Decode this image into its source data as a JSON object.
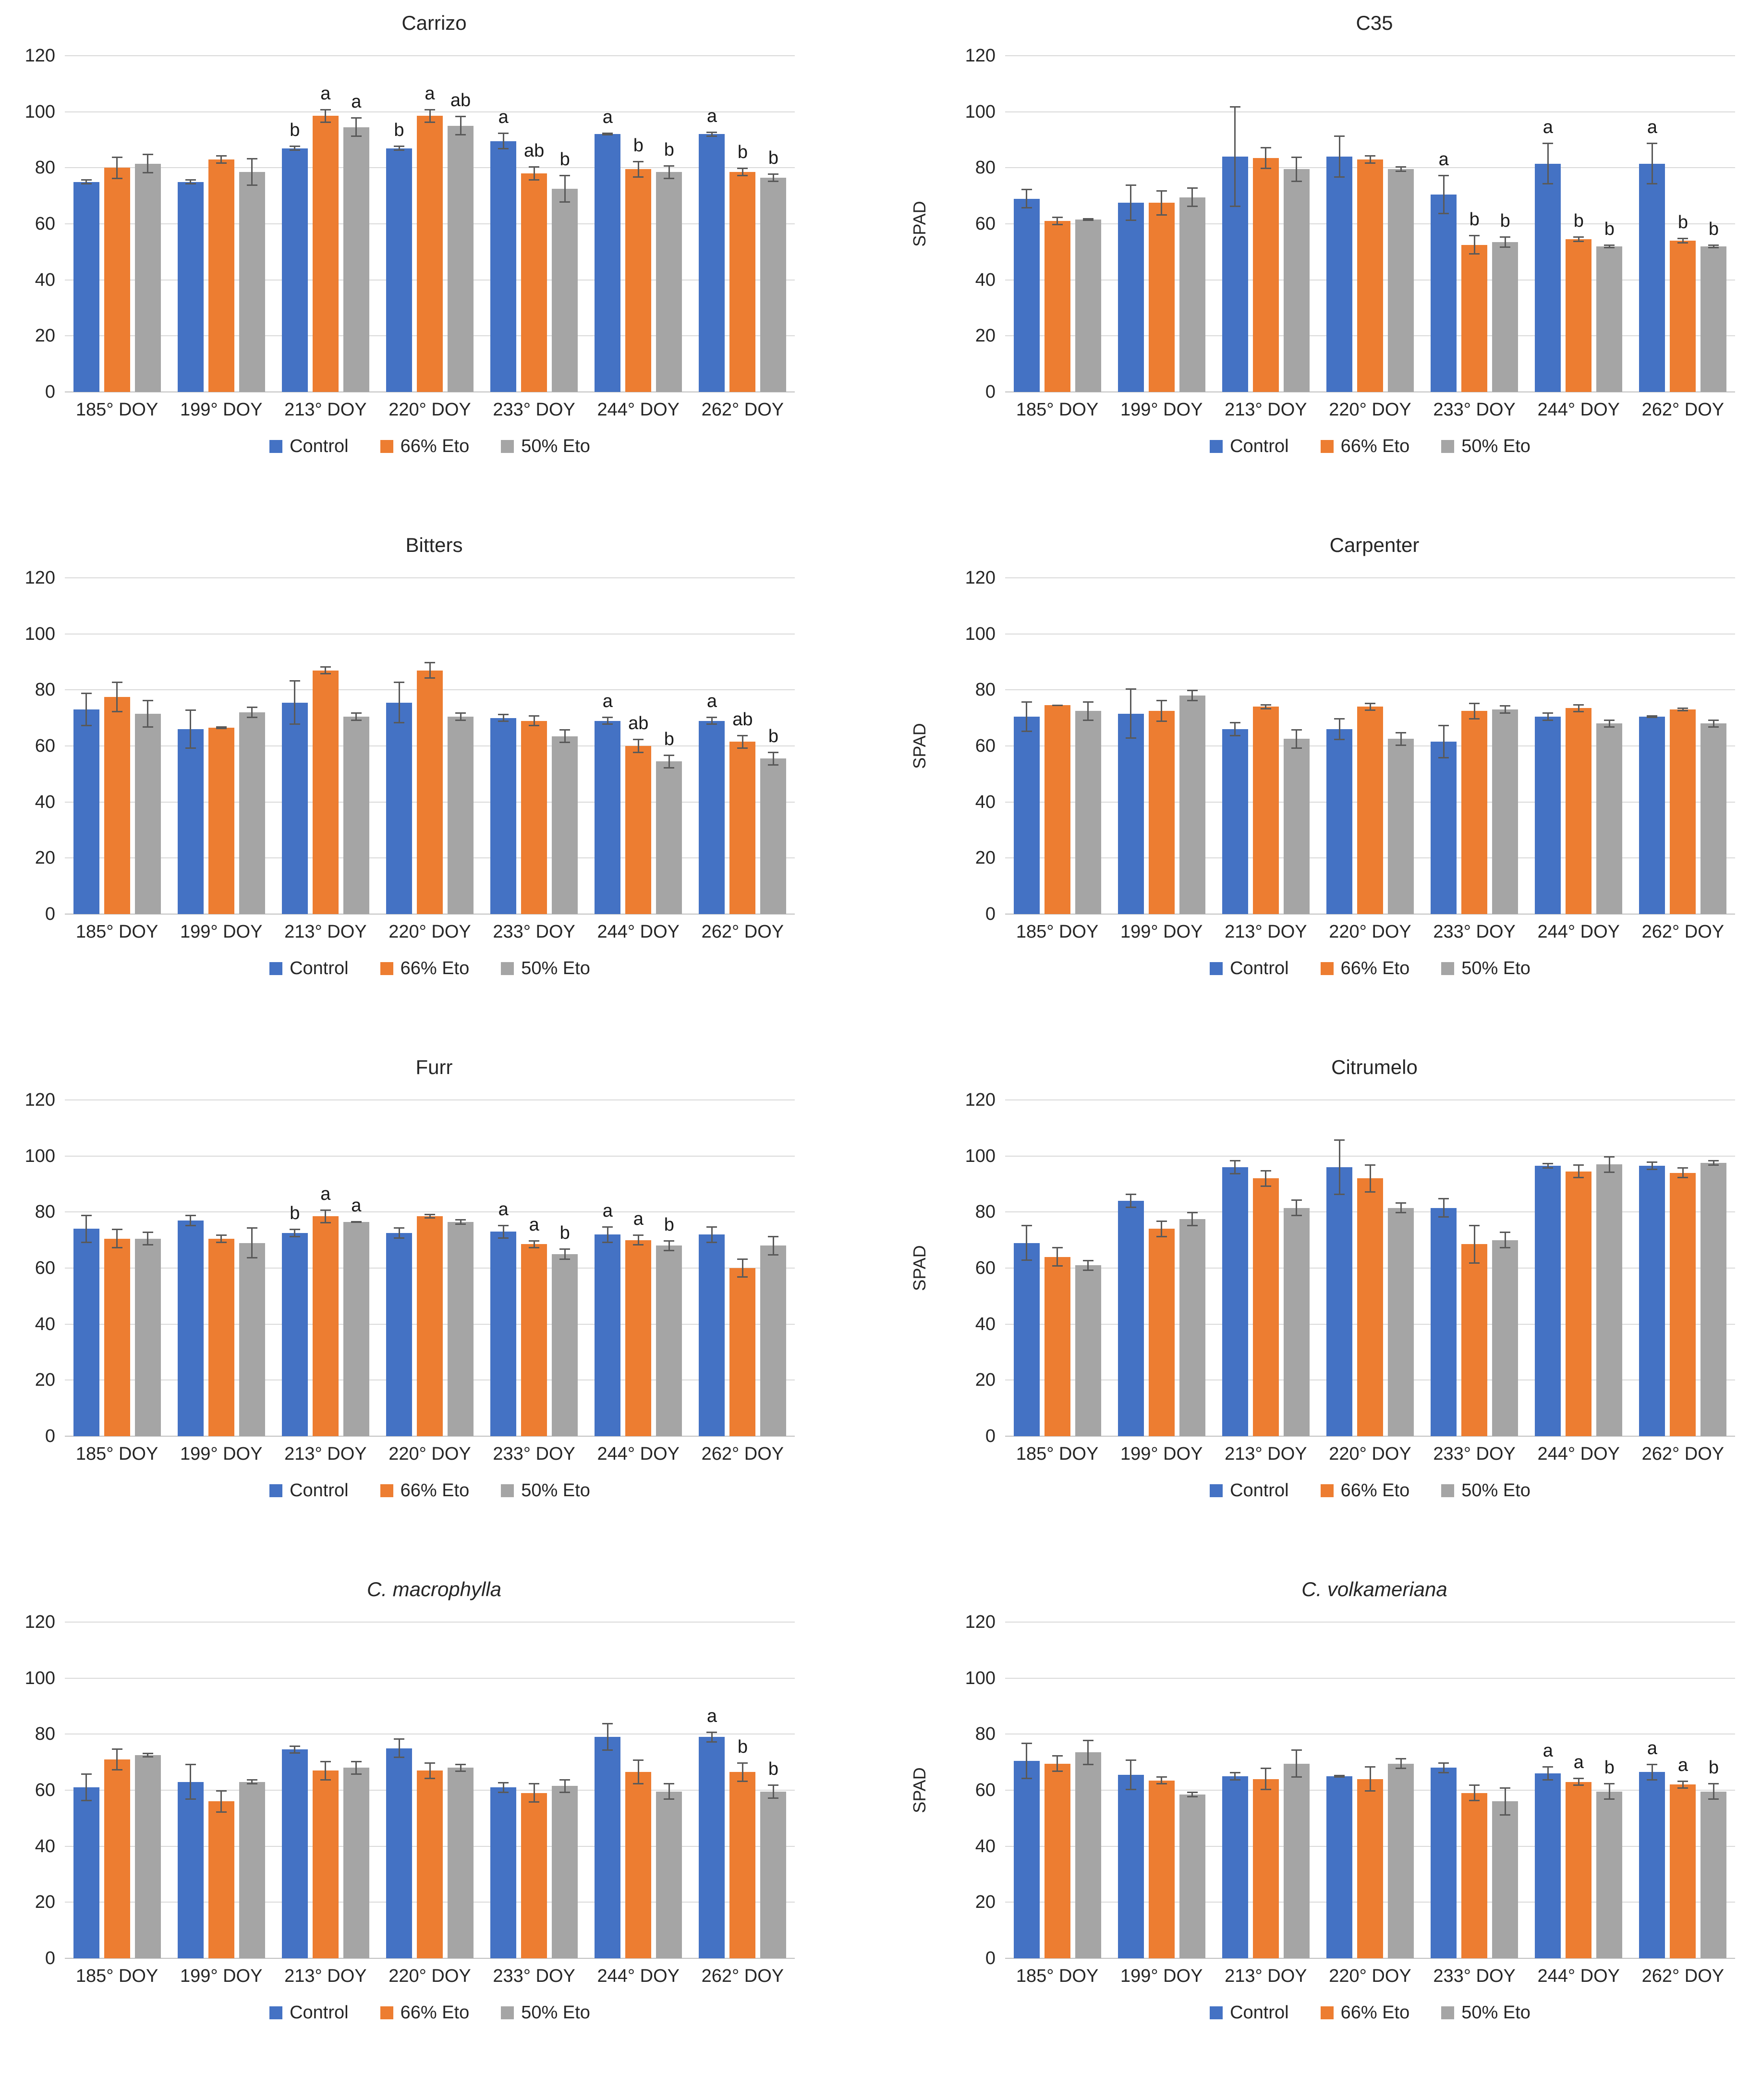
{
  "page": {
    "background": "#FFFFFF"
  },
  "axis": {
    "ylabel": "SPAD",
    "ymax": 120,
    "yticks": [
      0,
      20,
      40,
      60,
      80,
      100,
      120
    ],
    "grid": "horizontal"
  },
  "legend_labels": [
    "Control",
    "66% Eto",
    "50% Eto"
  ],
  "colors": {
    "control": "#4472C4",
    "eto66": "#ED7D31",
    "eto50": "#A5A5A5",
    "gridline": "#D9D9D9",
    "baseline": "#BFBFBF",
    "error_bar": "#595959",
    "text": "#262626"
  },
  "chart_data": [
    {
      "type": "bar",
      "title": "Carrizo",
      "italic": false,
      "ylabel": "SPAD",
      "ylim": [
        0,
        120
      ],
      "legend_position": "bottom",
      "categories": [
        "185° DOY",
        "199° DOY",
        "213° DOY",
        "220° DOY",
        "233° DOY",
        "244° DOY",
        "262° DOY"
      ],
      "series": [
        {
          "name": "Control",
          "color": "#4472C4",
          "values": [
            75,
            75,
            87,
            87,
            89.5,
            92,
            92
          ],
          "errors": [
            1,
            1,
            1,
            1,
            3,
            0.5,
            1
          ],
          "letters": [
            "",
            "",
            "b",
            "b",
            "a",
            "a",
            "a"
          ]
        },
        {
          "name": "66% Eto",
          "color": "#ED7D31",
          "values": [
            80,
            83,
            98.5,
            98.5,
            78,
            79.5,
            78.5
          ],
          "errors": [
            4,
            1.5,
            2.5,
            2.5,
            2.5,
            3,
            1.5
          ],
          "letters": [
            "",
            "",
            "a",
            "a",
            "ab",
            "b",
            "b"
          ]
        },
        {
          "name": "50% Eto",
          "color": "#A5A5A5",
          "values": [
            81.5,
            78.5,
            94.5,
            95,
            72.5,
            78.5,
            76.5
          ],
          "errors": [
            3.5,
            5,
            3.5,
            3.5,
            5,
            2.5,
            1.5
          ],
          "letters": [
            "",
            "",
            "a",
            "ab",
            "b",
            "b",
            "b"
          ]
        }
      ]
    },
    {
      "type": "bar",
      "title": "C35",
      "italic": false,
      "ylabel": "SPAD",
      "ylim": [
        0,
        120
      ],
      "legend_position": "bottom",
      "categories": [
        "185° DOY",
        "199° DOY",
        "213° DOY",
        "220° DOY",
        "233° DOY",
        "244° DOY",
        "262° DOY"
      ],
      "series": [
        {
          "name": "Control",
          "color": "#4472C4",
          "values": [
            69,
            67.5,
            84,
            84,
            70.5,
            81.5,
            81.5
          ],
          "errors": [
            3.5,
            6.5,
            18,
            7.5,
            7,
            7.5,
            7.5
          ],
          "letters": [
            "",
            "",
            "",
            "",
            "a",
            "a",
            "a"
          ]
        },
        {
          "name": "66% Eto",
          "color": "#ED7D31",
          "values": [
            61,
            67.5,
            83.5,
            83,
            52.5,
            54.5,
            54
          ],
          "errors": [
            1.5,
            4.5,
            4,
            1.5,
            3.5,
            1,
            1
          ],
          "letters": [
            "",
            "",
            "",
            "",
            "b",
            "b",
            "b"
          ]
        },
        {
          "name": "50% Eto",
          "color": "#A5A5A5",
          "values": [
            61.5,
            69.5,
            79.5,
            79.5,
            53.5,
            52,
            52
          ],
          "errors": [
            0.5,
            3.5,
            4.5,
            1,
            2,
            0.7,
            0.7
          ],
          "letters": [
            "",
            "",
            "",
            "",
            "b",
            "b",
            "b"
          ]
        }
      ]
    },
    {
      "type": "bar",
      "title": "Bitters",
      "italic": false,
      "ylabel": "SPAD",
      "ylim": [
        0,
        120
      ],
      "legend_position": "bottom",
      "categories": [
        "185° DOY",
        "199° DOY",
        "213° DOY",
        "220° DOY",
        "233° DOY",
        "244° DOY",
        "262° DOY"
      ],
      "series": [
        {
          "name": "Control",
          "color": "#4472C4",
          "values": [
            73,
            66,
            75.5,
            75.5,
            70,
            69,
            69
          ],
          "errors": [
            6,
            7,
            8,
            7.5,
            1.5,
            1.5,
            1.5
          ],
          "letters": [
            "",
            "",
            "",
            "",
            "",
            "a",
            "a"
          ]
        },
        {
          "name": "66% Eto",
          "color": "#ED7D31",
          "values": [
            77.5,
            66.5,
            87,
            87,
            69,
            60,
            61.5
          ],
          "errors": [
            5.5,
            0.5,
            1.5,
            3,
            2,
            2.5,
            2.5
          ],
          "letters": [
            "",
            "",
            "",
            "",
            "",
            "ab",
            "ab"
          ]
        },
        {
          "name": "50% Eto",
          "color": "#A5A5A5",
          "values": [
            71.5,
            72,
            70.5,
            70.5,
            63.5,
            54.5,
            55.5
          ],
          "errors": [
            5,
            2,
            1.5,
            1.5,
            2.5,
            2.5,
            2.5
          ],
          "letters": [
            "",
            "",
            "",
            "",
            "",
            "b",
            "b"
          ]
        }
      ]
    },
    {
      "type": "bar",
      "title": "Carpenter",
      "italic": false,
      "ylabel": "SPAD",
      "ylim": [
        0,
        120
      ],
      "legend_position": "bottom",
      "categories": [
        "185° DOY",
        "199° DOY",
        "213° DOY",
        "220° DOY",
        "233° DOY",
        "244° DOY",
        "262° DOY"
      ],
      "series": [
        {
          "name": "Control",
          "color": "#4472C4",
          "values": [
            70.5,
            71.5,
            66,
            66,
            61.5,
            70.5,
            70.5
          ],
          "errors": [
            5.5,
            9,
            2.5,
            4,
            6,
            1.5,
            0.5
          ],
          "letters": [
            "",
            "",
            "",
            "",
            "",
            "",
            ""
          ]
        },
        {
          "name": "66% Eto",
          "color": "#ED7D31",
          "values": [
            74.5,
            72.5,
            74,
            74,
            72.5,
            73.5,
            73
          ],
          "errors": [
            0.3,
            4,
            1,
            1.5,
            3,
            1.5,
            0.7
          ],
          "letters": [
            "",
            "",
            "",
            "",
            "",
            "",
            ""
          ]
        },
        {
          "name": "50% Eto",
          "color": "#A5A5A5",
          "values": [
            72.5,
            78,
            62.5,
            62.5,
            73,
            68,
            68
          ],
          "errors": [
            3.5,
            2,
            3.5,
            2.5,
            1.5,
            1.5,
            1.5
          ],
          "letters": [
            "",
            "",
            "",
            "",
            "",
            "",
            ""
          ]
        }
      ]
    },
    {
      "type": "bar",
      "title": "Furr",
      "italic": false,
      "ylabel": "SPAD",
      "ylim": [
        0,
        120
      ],
      "legend_position": "bottom",
      "categories": [
        "185° DOY",
        "199° DOY",
        "213° DOY",
        "220° DOY",
        "233° DOY",
        "244° DOY",
        "262° DOY"
      ],
      "series": [
        {
          "name": "Control",
          "color": "#4472C4",
          "values": [
            74,
            77,
            72.5,
            72.5,
            73,
            72,
            72
          ],
          "errors": [
            5,
            2,
            1.5,
            2,
            2.5,
            3,
            3
          ],
          "letters": [
            "",
            "",
            "b",
            "",
            "a",
            "a",
            ""
          ]
        },
        {
          "name": "66% Eto",
          "color": "#ED7D31",
          "values": [
            70.5,
            70.5,
            78.5,
            78.5,
            68.5,
            70,
            60
          ],
          "errors": [
            3.5,
            1.5,
            2.5,
            0.8,
            1.5,
            2,
            3.5
          ],
          "letters": [
            "",
            "",
            "a",
            "",
            "a",
            "a",
            ""
          ]
        },
        {
          "name": "50% Eto",
          "color": "#A5A5A5",
          "values": [
            70.5,
            69,
            76.5,
            76.5,
            65,
            68,
            68
          ],
          "errors": [
            2.5,
            5.5,
            0.3,
            1,
            2,
            2,
            3.5
          ],
          "letters": [
            "",
            "",
            "a",
            "",
            "b",
            "b",
            ""
          ]
        }
      ]
    },
    {
      "type": "bar",
      "title": "Citrumelo",
      "italic": false,
      "ylabel": "SPAD",
      "ylim": [
        0,
        120
      ],
      "legend_position": "bottom",
      "categories": [
        "185° DOY",
        "199° DOY",
        "213° DOY",
        "220° DOY",
        "233° DOY",
        "244° DOY",
        "262° DOY"
      ],
      "series": [
        {
          "name": "Control",
          "color": "#4472C4",
          "values": [
            69,
            84,
            96,
            96,
            81.5,
            96.5,
            96.5
          ],
          "errors": [
            6.5,
            2.5,
            2.5,
            10,
            3.5,
            1,
            1.5
          ],
          "letters": [
            "",
            "",
            "",
            "",
            "",
            "",
            ""
          ]
        },
        {
          "name": "66% Eto",
          "color": "#ED7D31",
          "values": [
            64,
            74,
            92,
            92,
            68.5,
            94.5,
            94
          ],
          "errors": [
            3.5,
            3,
            3,
            5,
            7,
            2.5,
            2
          ],
          "letters": [
            "",
            "",
            "",
            "",
            "",
            "",
            ""
          ]
        },
        {
          "name": "50% Eto",
          "color": "#A5A5A5",
          "values": [
            61,
            77.5,
            81.5,
            81.5,
            70,
            97,
            97.5
          ],
          "errors": [
            2,
            2.5,
            3,
            2,
            3,
            3,
            1
          ],
          "letters": [
            "",
            "",
            "",
            "",
            "",
            "",
            ""
          ]
        }
      ]
    },
    {
      "type": "bar",
      "title": "C. macrophylla",
      "italic": true,
      "ylabel": "SPAD",
      "ylim": [
        0,
        120
      ],
      "legend_position": "bottom",
      "categories": [
        "185° DOY",
        "199° DOY",
        "213° DOY",
        "220° DOY",
        "233° DOY",
        "244° DOY",
        "262° DOY"
      ],
      "series": [
        {
          "name": "Control",
          "color": "#4472C4",
          "values": [
            61,
            63,
            74.5,
            75,
            61,
            79,
            79
          ],
          "errors": [
            5,
            6.5,
            1.5,
            3.5,
            2,
            5,
            2
          ],
          "letters": [
            "",
            "",
            "",
            "",
            "",
            "",
            "a"
          ]
        },
        {
          "name": "66% Eto",
          "color": "#ED7D31",
          "values": [
            71,
            56,
            67,
            67,
            59,
            66.5,
            66.5
          ],
          "errors": [
            4,
            4,
            3.5,
            3,
            3.5,
            4.5,
            3.5
          ],
          "letters": [
            "",
            "",
            "",
            "",
            "",
            "",
            "b"
          ]
        },
        {
          "name": "50% Eto",
          "color": "#A5A5A5",
          "values": [
            72.5,
            63,
            68,
            68,
            61.5,
            59.5,
            59.5
          ],
          "errors": [
            0.8,
            1,
            2.5,
            1.5,
            2.5,
            3,
            2.5
          ],
          "letters": [
            "",
            "",
            "",
            "",
            "",
            "",
            "b"
          ]
        }
      ]
    },
    {
      "type": "bar",
      "title": "C. volkameriana",
      "italic": true,
      "ylabel": "SPAD",
      "ylim": [
        0,
        120
      ],
      "legend_position": "bottom",
      "categories": [
        "185° DOY",
        "199° DOY",
        "213° DOY",
        "220° DOY",
        "233° DOY",
        "244° DOY",
        "262° DOY"
      ],
      "series": [
        {
          "name": "Control",
          "color": "#4472C4",
          "values": [
            70.5,
            65.5,
            65,
            65,
            68,
            66,
            66.5
          ],
          "errors": [
            6.5,
            5.5,
            1.5,
            0.5,
            2,
            2.5,
            3
          ],
          "letters": [
            "",
            "",
            "",
            "",
            "",
            "a",
            "a"
          ]
        },
        {
          "name": "66% Eto",
          "color": "#ED7D31",
          "values": [
            69.5,
            63.5,
            64,
            64,
            59,
            63,
            62
          ],
          "errors": [
            3,
            1.5,
            4,
            4.5,
            3,
            1.5,
            1.5
          ],
          "letters": [
            "",
            "",
            "",
            "",
            "",
            "a",
            "a"
          ]
        },
        {
          "name": "50% Eto",
          "color": "#A5A5A5",
          "values": [
            73.5,
            58.5,
            69.5,
            69.5,
            56,
            59.5,
            59.5
          ],
          "errors": [
            4.5,
            1,
            5,
            2,
            5,
            3,
            3
          ],
          "letters": [
            "",
            "",
            "",
            "",
            "",
            "b",
            "b"
          ]
        }
      ]
    }
  ]
}
